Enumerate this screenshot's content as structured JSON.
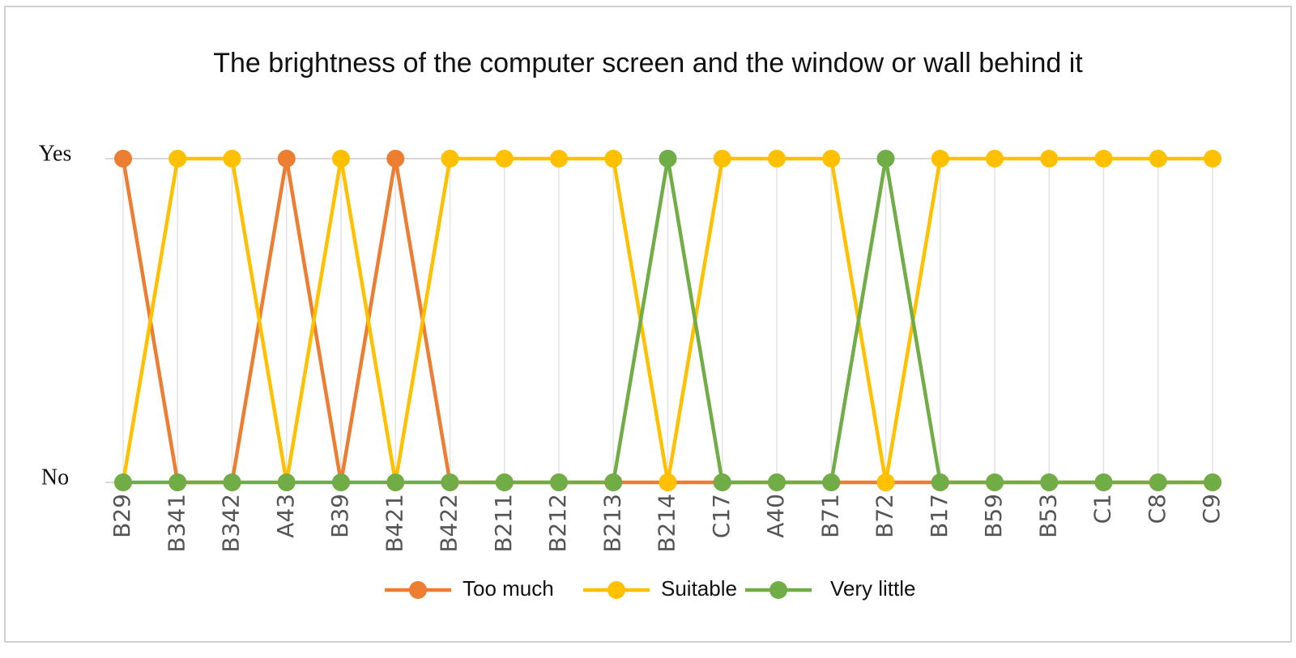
{
  "chart_data": {
    "type": "line",
    "title": "The brightness of the computer screen and the window or wall behind it",
    "categories": [
      "B29",
      "B341",
      "B342",
      "A43",
      "B39",
      "B421",
      "B422",
      "B211",
      "B212",
      "B213",
      "B214",
      "C17",
      "A40",
      "B71",
      "B72",
      "B17",
      "B59",
      "B53",
      "C1",
      "C8",
      "C9"
    ],
    "series": [
      {
        "name": "Too much",
        "color": "#ed7d31",
        "values": [
          1,
          0,
          0,
          1,
          0,
          1,
          0,
          0,
          0,
          0,
          0,
          0,
          0,
          0,
          0,
          0,
          0,
          0,
          0,
          0,
          0
        ]
      },
      {
        "name": "Suitable",
        "color": "#ffc000",
        "values": [
          0,
          1,
          1,
          0,
          1,
          0,
          1,
          1,
          1,
          1,
          0,
          1,
          1,
          1,
          0,
          1,
          1,
          1,
          1,
          1,
          1
        ]
      },
      {
        "name": "Very little",
        "color": "#70ad47",
        "values": [
          0,
          0,
          0,
          0,
          0,
          0,
          0,
          0,
          0,
          0,
          1,
          0,
          0,
          0,
          1,
          0,
          0,
          0,
          0,
          0,
          0
        ]
      }
    ],
    "ylim": [
      0,
      1
    ],
    "yticks": [
      {
        "value": 0,
        "label": "No"
      },
      {
        "value": 1,
        "label": "Yes"
      }
    ],
    "grid": true,
    "legend": "bottom"
  }
}
